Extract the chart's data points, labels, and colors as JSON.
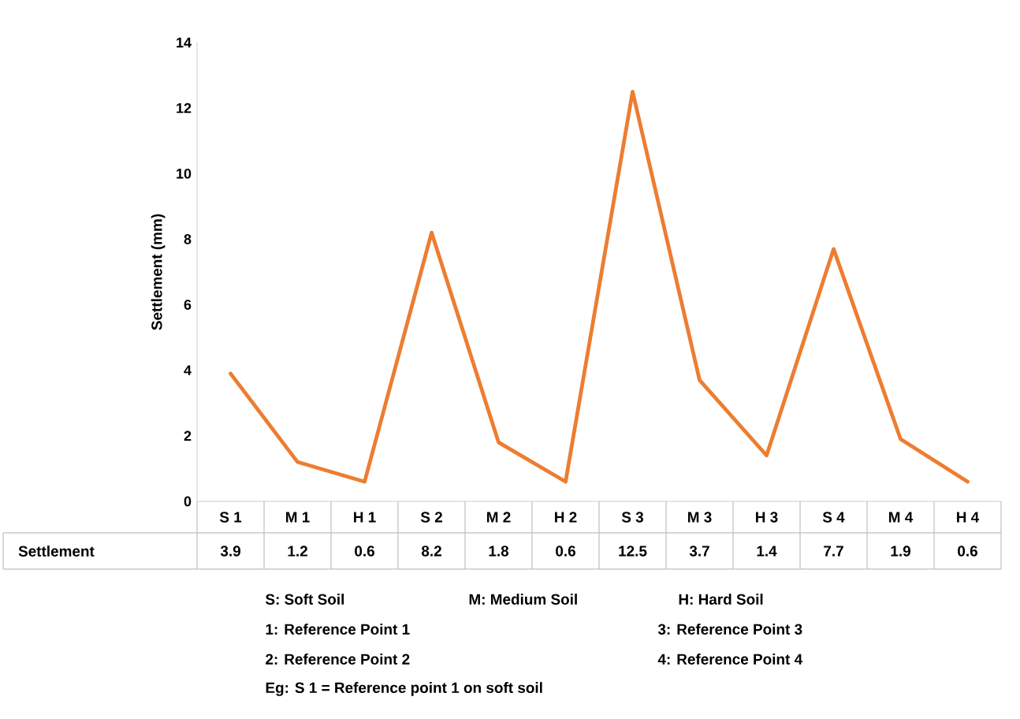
{
  "chart_data": {
    "type": "line",
    "ylabel": "Settlement (mm)",
    "categories": [
      "S 1",
      "M 1",
      "H 1",
      "S 2",
      "M 2",
      "H 2",
      "S 3",
      "M 3",
      "H 3",
      "S 4",
      "M 4",
      "H 4"
    ],
    "series": [
      {
        "name": "Settlement",
        "color": "#ed7d31",
        "values": [
          3.9,
          1.2,
          0.6,
          8.2,
          1.8,
          0.6,
          12.5,
          3.7,
          1.4,
          7.7,
          1.9,
          0.6
        ]
      }
    ],
    "ylim": [
      0,
      14
    ],
    "yticks": [
      0,
      2,
      4,
      6,
      8,
      10,
      12,
      14
    ],
    "data_labels": true,
    "grid": false,
    "annotations": [
      "S: Soft Soil",
      "M: Medium Soil",
      "H: Hard Soil",
      "1: Reference Point  1",
      "3: Reference Point 3",
      "2: Reference Point 2",
      "4: Reference Point 4",
      "Eg: S 1 = Reference point 1 on soft soil"
    ]
  }
}
